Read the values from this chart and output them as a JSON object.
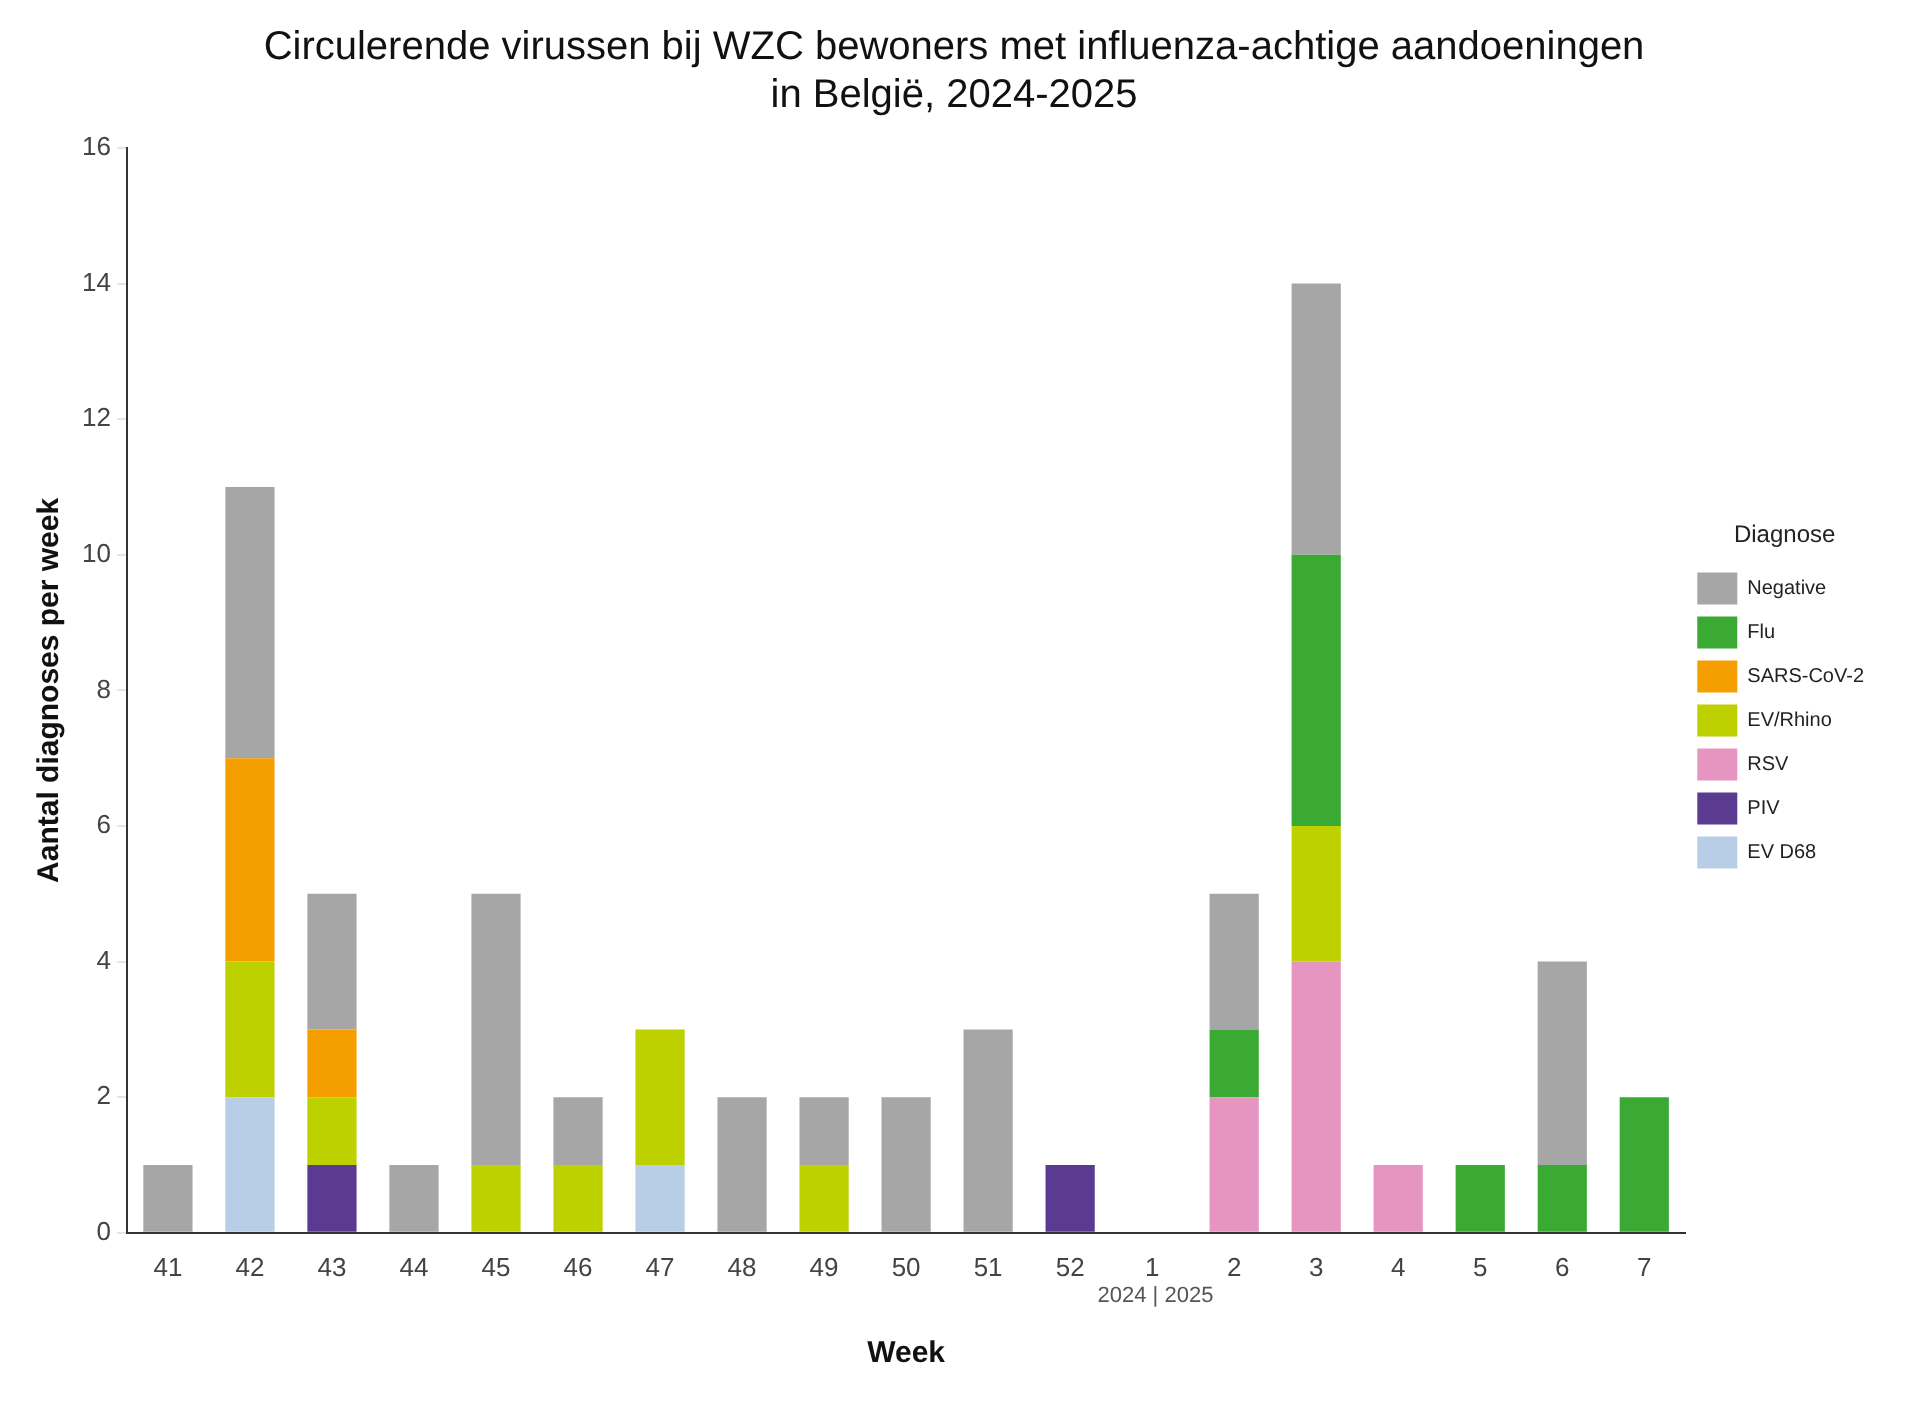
{
  "chart_data": {
    "type": "bar",
    "title": "Circulerende virussen bij WZC bewoners met influenza-achtige aandoeningen\nin België, 2024-2025",
    "xlabel": "Week",
    "ylabel": "Aantal diagnoses per week",
    "legend_title": "Diagnose",
    "categories": [
      "41",
      "42",
      "43",
      "44",
      "45",
      "46",
      "47",
      "48",
      "49",
      "50",
      "51",
      "52",
      "1",
      "2",
      "3",
      "4",
      "5",
      "6",
      "7"
    ],
    "stacked": true,
    "ylim": [
      0,
      16
    ],
    "yticks": [
      0,
      2,
      4,
      6,
      8,
      10,
      12,
      14,
      16
    ],
    "grid": false,
    "legend": "right",
    "annotations": [
      "2024 | 2025"
    ],
    "series": [
      {
        "name": "EV D68",
        "color": "#b8cde6",
        "values": [
          0,
          2,
          0,
          0,
          0,
          0,
          1,
          0,
          0,
          0,
          0,
          0,
          0,
          0,
          0,
          0,
          0,
          0,
          0
        ]
      },
      {
        "name": "PIV",
        "color": "#5b3a92",
        "values": [
          0,
          0,
          1,
          0,
          0,
          0,
          0,
          0,
          0,
          0,
          0,
          1,
          0,
          0,
          0,
          0,
          0,
          0,
          0
        ]
      },
      {
        "name": "RSV",
        "color": "#e595c0",
        "values": [
          0,
          0,
          0,
          0,
          0,
          0,
          0,
          0,
          0,
          0,
          0,
          0,
          0,
          2,
          4,
          1,
          0,
          0,
          0
        ]
      },
      {
        "name": "EV/Rhino",
        "color": "#bdd000",
        "values": [
          0,
          2,
          1,
          0,
          1,
          1,
          2,
          0,
          1,
          0,
          0,
          0,
          0,
          0,
          2,
          0,
          0,
          0,
          0
        ]
      },
      {
        "name": "SARS-CoV-2",
        "color": "#f59e00",
        "values": [
          0,
          3,
          1,
          0,
          0,
          0,
          0,
          0,
          0,
          0,
          0,
          0,
          0,
          0,
          0,
          0,
          0,
          0,
          0
        ]
      },
      {
        "name": "Flu",
        "color": "#3aaa35",
        "values": [
          0,
          0,
          0,
          0,
          0,
          0,
          0,
          0,
          0,
          0,
          0,
          0,
          0,
          1,
          4,
          0,
          1,
          1,
          2
        ]
      },
      {
        "name": "Negative",
        "color": "#a6a6a6",
        "values": [
          1,
          4,
          2,
          1,
          4,
          1,
          0,
          2,
          1,
          2,
          3,
          0,
          0,
          2,
          4,
          0,
          0,
          3,
          0
        ]
      }
    ]
  }
}
